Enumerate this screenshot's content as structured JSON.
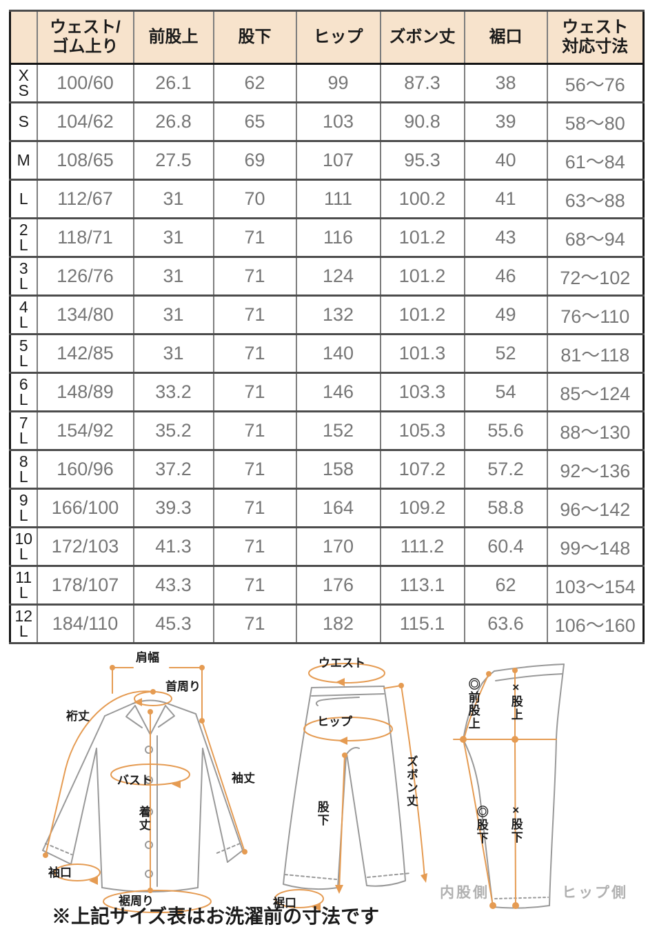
{
  "table": {
    "headers": [
      "ウェスト/\nゴム上り",
      "前股上",
      "股下",
      "ヒップ",
      "ズボン丈",
      "裾口",
      "ウェスト\n対応寸法"
    ],
    "rows": [
      {
        "size": "XS",
        "values": [
          "100/60",
          "26.1",
          "62",
          "99",
          "87.3",
          "38",
          "56～76"
        ]
      },
      {
        "size": "S",
        "values": [
          "104/62",
          "26.8",
          "65",
          "103",
          "90.8",
          "39",
          "58～80"
        ]
      },
      {
        "size": "M",
        "values": [
          "108/65",
          "27.5",
          "69",
          "107",
          "95.3",
          "40",
          "61～84"
        ]
      },
      {
        "size": "L",
        "values": [
          "112/67",
          "31",
          "70",
          "111",
          "100.2",
          "41",
          "63～88"
        ]
      },
      {
        "size": "2L",
        "values": [
          "118/71",
          "31",
          "71",
          "116",
          "101.2",
          "43",
          "68～94"
        ]
      },
      {
        "size": "3L",
        "values": [
          "126/76",
          "31",
          "71",
          "124",
          "101.2",
          "46",
          "72～102"
        ]
      },
      {
        "size": "4L",
        "values": [
          "134/80",
          "31",
          "71",
          "132",
          "101.2",
          "49",
          "76～110"
        ]
      },
      {
        "size": "5L",
        "values": [
          "142/85",
          "31",
          "71",
          "140",
          "101.3",
          "52",
          "81～118"
        ]
      },
      {
        "size": "6L",
        "values": [
          "148/89",
          "33.2",
          "71",
          "146",
          "103.3",
          "54",
          "85～124"
        ]
      },
      {
        "size": "7L",
        "values": [
          "154/92",
          "35.2",
          "71",
          "152",
          "105.3",
          "55.6",
          "88～130"
        ]
      },
      {
        "size": "8L",
        "values": [
          "160/96",
          "37.2",
          "71",
          "158",
          "107.2",
          "57.2",
          "92～136"
        ]
      },
      {
        "size": "9L",
        "values": [
          "166/100",
          "39.3",
          "71",
          "164",
          "109.2",
          "58.8",
          "96～142"
        ]
      },
      {
        "size": "10L",
        "values": [
          "172/103",
          "41.3",
          "71",
          "170",
          "111.2",
          "60.4",
          "99～148"
        ]
      },
      {
        "size": "11L",
        "values": [
          "178/107",
          "43.3",
          "71",
          "176",
          "113.1",
          "62",
          "103～154"
        ]
      },
      {
        "size": "12L",
        "values": [
          "184/110",
          "45.3",
          "71",
          "182",
          "115.1",
          "63.6",
          "106～160"
        ]
      }
    ]
  },
  "diagrams": {
    "shirt": {
      "shoulder_width": "肩幅",
      "neck_round": "首周り",
      "sleeve_reach": "裄丈",
      "bust": "バスト",
      "sleeve_length": "袖丈",
      "body_length": "着丈",
      "cuff_opening": "袖口",
      "hem_round": "裾周り"
    },
    "pants_front": {
      "waist": "ウエスト",
      "hip": "ヒップ",
      "pants_length": "ズボン丈",
      "inseam": "股下",
      "hem_opening": "裾口"
    },
    "pants_side": {
      "front_rise": "◎前股上",
      "rise": "×股上",
      "inseam_inner": "◎股下",
      "inseam_side": "×股下",
      "inner_side": "内股側",
      "hip_side": "ヒップ側"
    }
  },
  "footnote": "※上記サイズ表はお洗濯前の寸法です",
  "colors": {
    "header_bg": "#f7e3cc",
    "accent_orange": "#e59b52",
    "data_text": "#767676",
    "outline_gray": "#999999",
    "side_label_gray": "#b1b1b1"
  }
}
